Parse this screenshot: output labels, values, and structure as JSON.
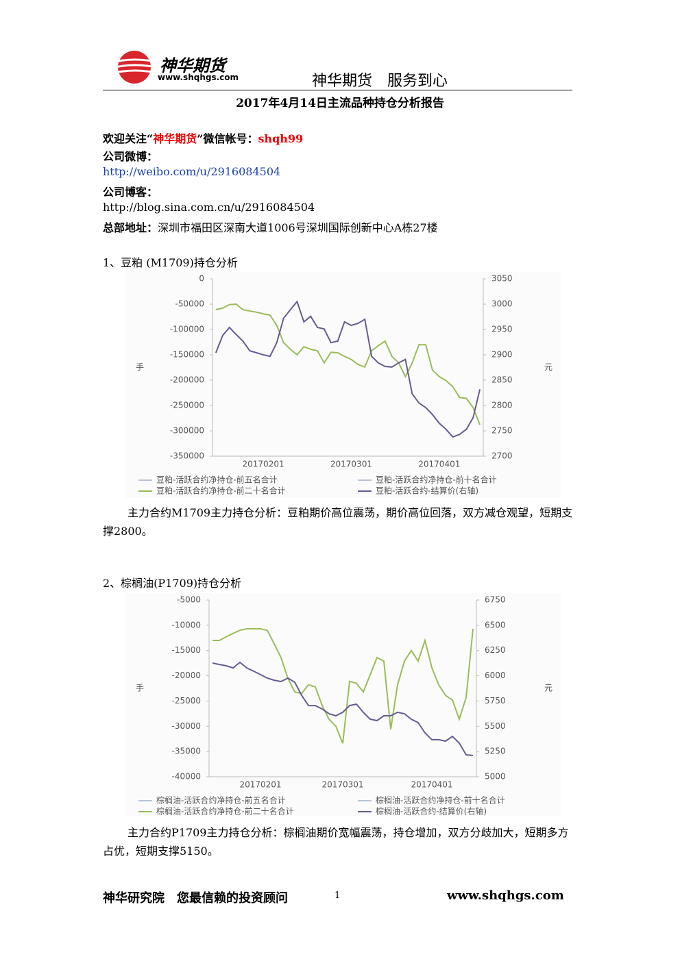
{
  "header": {
    "brand": "神华期货",
    "url": "www.shqhgs.com",
    "slogan": "神华期货　服务到心"
  },
  "title": "2017年4月14日主流品种持仓分析报告",
  "contact": {
    "wechat_prefix": "欢迎关注“",
    "wechat_brand": "神华期货",
    "wechat_mid": "”微信帐号：",
    "wechat_account": "shqh99",
    "weibo_label": "公司微博：",
    "weibo_url": "http://weibo.com/u/2916084504",
    "blog_label": "公司博客：",
    "blog_url": "http://blog.sina.com.cn/u/2916084504",
    "address_label": "总部地址：",
    "address": "深圳市福田区深南大道1006号深圳国际创新中心A栋27楼"
  },
  "sections": [
    {
      "heading": "1、豆粕 (M1709)持仓分析",
      "analysis": "主力合约M1709主力持仓分析：豆粕期价高位震荡，期价高位回落，双方减仓观望，短期支撑2800。"
    },
    {
      "heading": "2、棕榈油(P1709)持仓分析",
      "analysis": "主力合约P1709主力持仓分析：棕榈油期价宽幅震荡，持仓增加，双方分歧加大，短期多方占优，短期支撑5150。"
    }
  ],
  "footer": {
    "left": "神华研究院　您最信赖的投资顾问",
    "page": "1",
    "right": "www.shqhgs.com"
  },
  "chart_data": [
    {
      "type": "line",
      "y_label": "手",
      "y2_label": "元",
      "categories": [
        null,
        null,
        null,
        null,
        null,
        null,
        null,
        "20170201",
        null,
        null,
        null,
        null,
        null,
        null,
        null,
        null,
        null,
        null,
        null,
        null,
        "20170301",
        null,
        null,
        null,
        null,
        null,
        null,
        null,
        null,
        null,
        null,
        null,
        null,
        "20170401",
        null,
        null,
        null,
        null,
        null,
        null
      ],
      "ylim": [
        -350000,
        0
      ],
      "yticks": [
        0,
        -50000,
        -100000,
        -150000,
        -200000,
        -250000,
        -300000,
        -350000
      ],
      "y2lim": [
        2700,
        3050
      ],
      "y2ticks": [
        3050,
        3000,
        2950,
        2900,
        2850,
        2800,
        2750,
        2700
      ],
      "series": [
        {
          "name": "豆粕-活跃合约净持仓-前五名合计",
          "color": "#b8c4d6",
          "values": [
            null,
            null,
            null,
            null,
            null,
            null,
            null,
            null,
            null,
            null,
            null,
            null,
            null,
            null,
            null,
            null,
            null,
            null,
            null,
            null,
            null,
            null,
            null,
            null,
            null,
            null,
            null,
            null,
            null,
            null,
            null,
            null,
            null,
            null,
            null,
            null,
            null,
            null,
            null,
            null
          ]
        },
        {
          "name": "豆粕-活跃合约净持仓-前十名合计",
          "color": "#b8c4d6",
          "values": [
            null,
            null,
            null,
            null,
            null,
            null,
            null,
            null,
            null,
            null,
            null,
            null,
            null,
            null,
            null,
            null,
            null,
            null,
            null,
            null,
            null,
            null,
            null,
            null,
            null,
            null,
            null,
            null,
            null,
            null,
            null,
            null,
            null,
            null,
            null,
            null,
            null,
            null,
            null,
            null
          ]
        },
        {
          "name": "豆粕-活跃合约净持仓-前二十名合计",
          "color": "#9bbb59",
          "values": [
            -60800,
            -58000,
            -51000,
            -50000,
            -61000,
            -63500,
            -66000,
            -69000,
            -71600,
            -92000,
            -126000,
            -139000,
            -150000,
            -134000,
            -139000,
            -142000,
            -166000,
            -145000,
            -146000,
            -153000,
            -159000,
            -169000,
            -174000,
            -142000,
            -132000,
            -123000,
            -153000,
            -166000,
            -193000,
            -166000,
            -130000,
            -130000,
            -180000,
            -193000,
            -201000,
            -213000,
            -234000,
            -236000,
            -254000,
            -288000
          ]
        },
        {
          "name": "豆粕-活跃合约-结算价(右轴)",
          "color": "#675a92",
          "axis": "y2",
          "values": [
            2904,
            2938,
            2954,
            2940,
            2927,
            2908,
            2904,
            2900,
            2897,
            2924,
            2972,
            2989,
            3005,
            2965,
            2976,
            2954,
            2951,
            2924,
            2927,
            2965,
            2958,
            2962,
            2970,
            2897,
            2884,
            2877,
            2876,
            2884,
            2891,
            2823,
            2805,
            2796,
            2782,
            2765,
            2753,
            2738,
            2743,
            2753,
            2776,
            2832
          ]
        }
      ]
    },
    {
      "type": "line",
      "y_label": "手",
      "y2_label": "元",
      "categories": [
        null,
        null,
        null,
        null,
        null,
        null,
        null,
        "20170201",
        null,
        null,
        null,
        null,
        null,
        null,
        null,
        null,
        null,
        null,
        null,
        "20170301",
        null,
        null,
        null,
        null,
        null,
        null,
        null,
        null,
        null,
        null,
        null,
        null,
        "20170401",
        null,
        null,
        null,
        null,
        null,
        null
      ],
      "ylim": [
        -40000,
        -5000
      ],
      "yticks": [
        -5000,
        -10000,
        -15000,
        -20000,
        -25000,
        -30000,
        -35000,
        -40000
      ],
      "y2lim": [
        5000,
        6750
      ],
      "y2ticks": [
        6750,
        6500,
        6250,
        6000,
        5750,
        5500,
        5250,
        5000
      ],
      "series": [
        {
          "name": "棕榈油-活跃合约净持仓-前五名合计",
          "color": "#b8c4d6",
          "values": [
            null,
            null,
            null,
            null,
            null,
            null,
            null,
            null,
            null,
            null,
            null,
            null,
            null,
            null,
            null,
            null,
            null,
            null,
            null,
            null,
            null,
            null,
            null,
            null,
            null,
            null,
            null,
            null,
            null,
            null,
            null,
            null,
            null,
            null,
            null,
            null,
            null,
            null,
            null
          ]
        },
        {
          "name": "棕榈油-活跃合约净持仓-前十名合计",
          "color": "#b8c4d6",
          "values": [
            null,
            null,
            null,
            null,
            null,
            null,
            null,
            null,
            null,
            null,
            null,
            null,
            null,
            null,
            null,
            null,
            null,
            null,
            null,
            null,
            null,
            null,
            null,
            null,
            null,
            null,
            null,
            null,
            null,
            null,
            null,
            null,
            null,
            null,
            null,
            null,
            null,
            null,
            null
          ]
        },
        {
          "name": "棕榈油-活跃合约净持仓-前二十名合计",
          "color": "#9bbb59",
          "values": [
            -13000,
            -13000,
            -12300,
            -11600,
            -11000,
            -10700,
            -10700,
            -10700,
            -11000,
            -13700,
            -16400,
            -20500,
            -23200,
            -23500,
            -21800,
            -22200,
            -25900,
            -28600,
            -30000,
            -33400,
            -21100,
            -21500,
            -23200,
            -19800,
            -16400,
            -17100,
            -30600,
            -21800,
            -17100,
            -15000,
            -17100,
            -13000,
            -18400,
            -21800,
            -23900,
            -24800,
            -28600,
            -24300,
            -10700
          ]
        },
        {
          "name": "棕榈油-活跃合约-结算价(右轴)",
          "color": "#675a92",
          "axis": "y2",
          "values": [
            6126,
            6112,
            6099,
            6078,
            6133,
            6078,
            6045,
            6011,
            5977,
            5956,
            5943,
            5977,
            5936,
            5807,
            5705,
            5705,
            5671,
            5624,
            5604,
            5638,
            5705,
            5719,
            5638,
            5570,
            5556,
            5604,
            5604,
            5638,
            5624,
            5570,
            5536,
            5434,
            5367,
            5367,
            5353,
            5400,
            5333,
            5217,
            5210
          ]
        }
      ]
    }
  ]
}
